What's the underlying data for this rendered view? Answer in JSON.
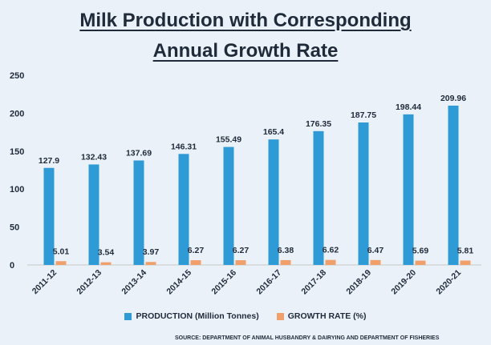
{
  "title_line1": "Milk Production with Corresponding",
  "title_line2": "Annual Growth Rate",
  "source": "SOURCE: DEPARTMENT OF ANIMAL HUSBANDRY & DAIRYING AND DEPARTMENT OF FISHERIES",
  "chart_data": {
    "type": "bar",
    "categories": [
      "2011-12",
      "2012-13",
      "2013-14",
      "2014-15",
      "2015-16",
      "2016-17",
      "2017-18",
      "2018-19",
      "2019-20",
      "2020-21"
    ],
    "series": [
      {
        "name": "PRODUCTION (Million Tonnes)",
        "color": "#2e9bd6",
        "values": [
          127.9,
          132.43,
          137.69,
          146.31,
          155.49,
          165.4,
          176.35,
          187.75,
          198.44,
          209.96
        ]
      },
      {
        "name": "GROWTH RATE (%)",
        "color": "#f2a06b",
        "values": [
          5.01,
          3.54,
          3.97,
          6.27,
          6.27,
          6.38,
          6.62,
          6.47,
          5.69,
          5.81
        ]
      }
    ],
    "y_ticks": [
      0,
      50,
      100,
      150,
      200,
      250
    ],
    "ylim": [
      0,
      250
    ],
    "grid": false,
    "legend_position": "bottom"
  }
}
